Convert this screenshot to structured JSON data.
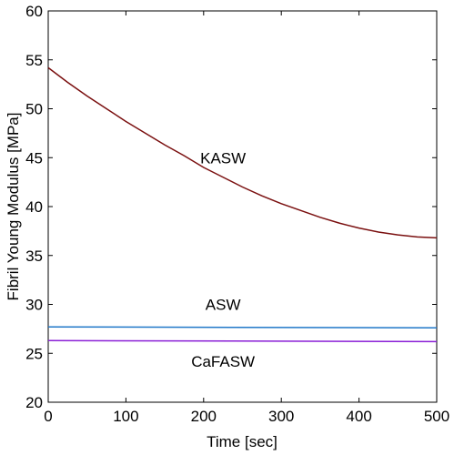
{
  "chart_data": {
    "type": "line",
    "title": "",
    "xlabel": "Time [sec]",
    "ylabel": "Fibril Young Modulus [MPa]",
    "xlim": [
      0,
      500
    ],
    "ylim": [
      20,
      60
    ],
    "xticks": [
      0,
      100,
      200,
      300,
      400,
      500
    ],
    "yticks": [
      20,
      25,
      30,
      35,
      40,
      45,
      50,
      55,
      60
    ],
    "grid": false,
    "legend": "none",
    "series": [
      {
        "color": "#7a0f0f",
        "x": [
          0,
          25,
          50,
          75,
          100,
          125,
          150,
          175,
          200,
          225,
          250,
          275,
          300,
          325,
          350,
          375,
          400,
          425,
          450,
          475,
          500
        ],
        "y": [
          54.2,
          52.7,
          51.3,
          50.0,
          48.7,
          47.5,
          46.3,
          45.2,
          44.0,
          43.0,
          42.0,
          41.1,
          40.3,
          39.6,
          38.9,
          38.3,
          37.8,
          37.4,
          37.1,
          36.9,
          36.8
        ]
      },
      {
        "color": "#1f77c8",
        "x": [
          0,
          500
        ],
        "y": [
          27.7,
          27.6
        ]
      },
      {
        "color": "#8a1fd6",
        "x": [
          0,
          500
        ],
        "y": [
          26.3,
          26.2
        ]
      }
    ],
    "annotations": [
      {
        "text": "KASW",
        "x": 225,
        "y": 45
      },
      {
        "text": "ASW",
        "x": 225,
        "y": 30
      },
      {
        "text": "CaFASW",
        "x": 225,
        "y": 24.2
      }
    ]
  }
}
